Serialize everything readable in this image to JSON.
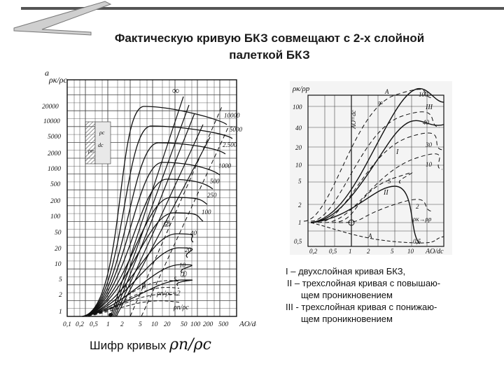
{
  "title": {
    "line1": "Фактическую кривую БКЗ совмещают с 2-х слойной",
    "line2": "палеткой БКЗ"
  },
  "left_chart": {
    "y_axis_label": "ρк/ρс",
    "y_corner": "a",
    "x_axis_label": "AO/dс",
    "y_ticks": [
      "1",
      "2",
      "5",
      "10",
      "20",
      "50",
      "100",
      "200",
      "500",
      "1000",
      "2000",
      "5000",
      "10000",
      "20000"
    ],
    "x_ticks": [
      "0,1",
      "0,2",
      "0,5",
      "1",
      "2",
      "5",
      "10",
      "20",
      "50",
      "100",
      "200",
      "500"
    ],
    "curve_labels": [
      "10000",
      "5000",
      "2.500",
      "1000",
      "500",
      "250",
      "100",
      "40",
      "20",
      "10",
      "5"
    ],
    "infinity": "∞",
    "marker_labels": [
      "A",
      "B"
    ],
    "circle_marks": [
      "②",
      "①"
    ],
    "formula_1": "ρп/ρс=2",
    "formula_2": "ρп/ρс",
    "inset_labels": [
      "ρс",
      "ρп",
      "dс"
    ]
  },
  "right_chart": {
    "y_axis_label": "ρк/ρр",
    "x_axis_label": "AO/dс",
    "vertical_line_label": "AO=dс",
    "y_ticks": [
      "0,5",
      "1",
      "2",
      "5",
      "10",
      "20",
      "40",
      "100"
    ],
    "x_ticks": [
      "0,2",
      "0,5",
      "1",
      "2",
      "5",
      "10",
      "AO/dс"
    ],
    "curve_labels": [
      "100",
      "40",
      "30",
      "10",
      "5",
      "2",
      "0,5"
    ],
    "roman_labels": [
      "I",
      "II",
      "III"
    ],
    "marker_labels": [
      "A",
      "A"
    ],
    "infinity": "∞",
    "asymptote_label": "ρк→ρр"
  },
  "legend": {
    "line1": "I – двухслойная кривая БКЗ,",
    "line2": "II – трехслойная кривая с повышаю-",
    "line3": "щем проникновением",
    "line4": "III - трехслойная кривая с понижаю-",
    "line5": "щем проникновением"
  },
  "cipher": {
    "text": "Шифр кривых",
    "formula": "ρп/ρс"
  }
}
